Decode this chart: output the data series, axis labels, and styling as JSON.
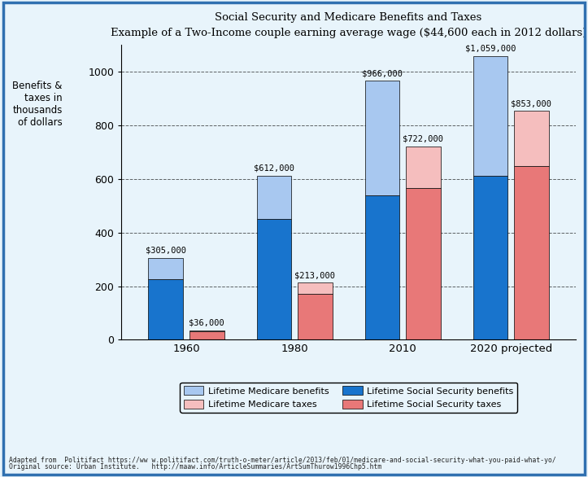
{
  "title1": "Social Security and Medicare Benefits and Taxes",
  "title2": "Example of a Two-Income couple earning average wage ($44,600 each in 2012 dollars)",
  "years": [
    "1960",
    "1980",
    "2010",
    "2020 projected"
  ],
  "benefits_ss": [
    225,
    450,
    540,
    610
  ],
  "benefits_medicare": [
    80,
    162,
    426,
    449
  ],
  "benefits_total_labels": [
    "$305,000",
    "$612,000",
    "$966,000",
    "$1,059,000"
  ],
  "taxes_ss": [
    33,
    170,
    567,
    648
  ],
  "taxes_medicare": [
    3,
    43,
    155,
    205
  ],
  "taxes_total_labels": [
    "$36,000",
    "$213,000",
    "$722,000",
    "$853,000"
  ],
  "color_benefits_ss": "#1874CD",
  "color_benefits_medicare": "#A8C8F0",
  "color_taxes_ss": "#E87878",
  "color_taxes_medicare": "#F5BEBE",
  "ylim": [
    0,
    1100
  ],
  "yticks": [
    0,
    200,
    400,
    600,
    800,
    1000
  ],
  "bar_width": 0.32,
  "footnote1": "Adapted from  Politifact https://ww w.politifact.com/truth-o-meter/article/2013/feb/01/medicare-and-social-security-what-you-paid-what-yo/",
  "footnote2": "Original source: Urban Institute.   http://maaw.info/ArticleSummaries/ArtSumThurow1996Chp5.htm",
  "background_color": "#E8F4FB",
  "border_color": "#3070B0"
}
